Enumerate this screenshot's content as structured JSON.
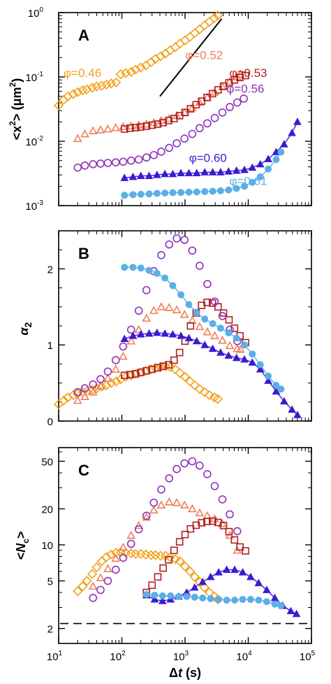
{
  "series": [
    {
      "phi": "0.46",
      "color": "#F2A11A",
      "marker": "diamond"
    },
    {
      "phi": "0.52",
      "color": "#EE7F58",
      "marker": "triangle"
    },
    {
      "phi": "0.53",
      "color": "#B01F23",
      "marker": "square"
    },
    {
      "phi": "0.56",
      "color": "#8E31B8",
      "marker": "circle"
    },
    {
      "phi": "0.60",
      "color": "#3A1BD1",
      "marker": "filled-triangle"
    },
    {
      "phi": "0.61",
      "color": "#5AAFE6",
      "marker": "filled-circle"
    }
  ],
  "chart_data": [
    {
      "type": "scatter",
      "panel": "A",
      "ylabel": "<x²> (μm²)",
      "xlabel": "",
      "xscale": "log",
      "yscale": "log",
      "xlim": [
        10,
        100000
      ],
      "ylim": [
        0.001,
        1
      ],
      "yticks": [
        "10⁻³",
        "10⁻²",
        "10⁻¹",
        "10⁰"
      ],
      "slope_line": [
        [
          400,
          0.05
        ],
        [
          3800,
          0.8
        ]
      ],
      "labels": [
        {
          "text": "φ=0.46",
          "series": 0,
          "at": [
            12,
            0.1
          ]
        },
        {
          "text": "φ=0.52",
          "series": 1,
          "at": [
            2000,
            0.19
          ]
        },
        {
          "text": "φ=0.53",
          "series": 2,
          "at": [
            10000,
            0.1
          ]
        },
        {
          "text": "φ=0.56",
          "series": 3,
          "at": [
            9000,
            0.057
          ]
        },
        {
          "text": "φ=0.60",
          "series": 4,
          "at": [
            2300,
            0.0048
          ]
        },
        {
          "text": "φ=0.61",
          "series": 5,
          "at": [
            10000,
            0.0021
          ]
        }
      ],
      "series": [
        {
          "x": [
            10,
            12,
            14,
            17,
            20,
            24,
            28,
            34,
            40,
            48,
            57,
            68,
            81,
            96,
            115,
            140,
            165,
            200,
            240,
            290,
            340,
            410,
            490,
            580,
            700,
            830,
            1000,
            1200,
            1420,
            1700,
            2030,
            2430,
            2900,
            3300
          ],
          "y": [
            0.036,
            0.044,
            0.05,
            0.054,
            0.058,
            0.062,
            0.064,
            0.068,
            0.071,
            0.073,
            0.076,
            0.079,
            0.082,
            0.11,
            0.115,
            0.12,
            0.13,
            0.14,
            0.15,
            0.17,
            0.19,
            0.21,
            0.23,
            0.26,
            0.29,
            0.33,
            0.37,
            0.42,
            0.48,
            0.55,
            0.63,
            0.72,
            0.82,
            0.9
          ]
        },
        {
          "x": [
            20,
            26,
            35,
            46,
            60,
            80,
            105,
            140,
            185,
            245,
            320,
            420,
            560,
            740,
            980,
            1300,
            1700,
            2250,
            2950,
            3900,
            5100,
            6700,
            7500
          ],
          "y": [
            0.011,
            0.013,
            0.0145,
            0.015,
            0.0155,
            0.0162,
            0.0168,
            0.0173,
            0.0178,
            0.0185,
            0.0195,
            0.021,
            0.0225,
            0.025,
            0.028,
            0.033,
            0.04,
            0.048,
            0.058,
            0.07,
            0.085,
            0.1,
            0.11
          ]
        },
        {
          "x": [
            110,
            135,
            165,
            200,
            245,
            300,
            370,
            450,
            550,
            670,
            820,
            1000,
            1220,
            1500,
            1830,
            2230,
            2720,
            3330,
            4060,
            4960,
            6060,
            7400,
            9040
          ],
          "y": [
            0.0155,
            0.016,
            0.0163,
            0.0167,
            0.0172,
            0.0178,
            0.0185,
            0.0195,
            0.021,
            0.0225,
            0.025,
            0.028,
            0.032,
            0.037,
            0.042,
            0.048,
            0.055,
            0.063,
            0.072,
            0.081,
            0.09,
            0.098,
            0.105
          ]
        },
        {
          "x": [
            20,
            26,
            35,
            46,
            60,
            80,
            105,
            140,
            185,
            245,
            320,
            420,
            560,
            740,
            980,
            1300,
            1700,
            2250,
            2950,
            3900,
            5100,
            6700,
            8500
          ],
          "y": [
            0.0039,
            0.0042,
            0.0044,
            0.0045,
            0.0046,
            0.0047,
            0.0048,
            0.005,
            0.0052,
            0.0056,
            0.0061,
            0.0069,
            0.0079,
            0.0093,
            0.011,
            0.013,
            0.016,
            0.019,
            0.023,
            0.028,
            0.034,
            0.04,
            0.046
          ]
        },
        {
          "x": [
            110,
            150,
            200,
            270,
            360,
            480,
            640,
            860,
            1150,
            1530,
            2050,
            2740,
            3650,
            4880,
            6520,
            8700,
            11600,
            15500,
            20700,
            27600,
            36900,
            49200,
            60000
          ],
          "y": [
            0.0027,
            0.0028,
            0.0029,
            0.0029,
            0.003,
            0.0031,
            0.0031,
            0.0032,
            0.0032,
            0.0032,
            0.0033,
            0.0033,
            0.0033,
            0.0034,
            0.0035,
            0.0036,
            0.0039,
            0.0044,
            0.0053,
            0.0068,
            0.009,
            0.0135,
            0.02
          ]
        },
        {
          "x": [
            110,
            150,
            200,
            270,
            360,
            480,
            640,
            860,
            1150,
            1530,
            2050,
            2740,
            3650,
            4880,
            6520,
            8700,
            11600,
            15500,
            20700,
            27600,
            33000
          ],
          "y": [
            0.00145,
            0.00148,
            0.0015,
            0.00152,
            0.00155,
            0.00157,
            0.00159,
            0.0016,
            0.00162,
            0.00163,
            0.00165,
            0.00167,
            0.0017,
            0.00175,
            0.00185,
            0.002,
            0.0023,
            0.0028,
            0.0037,
            0.0052,
            0.0068
          ]
        }
      ]
    },
    {
      "type": "scatter",
      "panel": "B",
      "ylabel": "α₂",
      "xlabel": "",
      "xscale": "log",
      "yscale": "linear",
      "xlim": [
        10,
        100000
      ],
      "ylim": [
        0,
        2.5
      ],
      "yticks": [
        0,
        1,
        2
      ],
      "series": [
        {
          "x": [
            10,
            12,
            14,
            17,
            20,
            24,
            28,
            34,
            40,
            48,
            57,
            68,
            81,
            96,
            115,
            140,
            165,
            200,
            240,
            290,
            340,
            410,
            490,
            580,
            700,
            830,
            1000,
            1200,
            1420,
            1700,
            2030,
            2430,
            2900,
            3300
          ],
          "y": [
            0.22,
            0.27,
            0.31,
            0.34,
            0.36,
            0.38,
            0.39,
            0.41,
            0.43,
            0.45,
            0.47,
            0.5,
            0.52,
            0.55,
            0.58,
            0.6,
            0.62,
            0.64,
            0.66,
            0.68,
            0.7,
            0.71,
            0.72,
            0.71,
            0.68,
            0.63,
            0.58,
            0.52,
            0.47,
            0.42,
            0.38,
            0.34,
            0.31,
            0.29
          ]
        },
        {
          "x": [
            20,
            26,
            35,
            46,
            60,
            80,
            105,
            140,
            185,
            245,
            320,
            420,
            560,
            740,
            980,
            1300,
            1700,
            2250,
            2950,
            3900,
            5100,
            6700,
            7500
          ],
          "y": [
            0.27,
            0.32,
            0.38,
            0.46,
            0.56,
            0.68,
            0.85,
            1.05,
            1.2,
            1.35,
            1.45,
            1.5,
            1.49,
            1.46,
            1.4,
            1.32,
            1.24,
            1.17,
            1.12,
            1.06,
            0.99,
            0.95,
            0.94
          ]
        },
        {
          "x": [
            110,
            135,
            165,
            200,
            245,
            300,
            370,
            450,
            550,
            670,
            820,
            1000,
            1220,
            1500,
            1830,
            2230,
            2720,
            3330,
            4060,
            4960,
            6060,
            7400,
            9040
          ],
          "y": [
            0.6,
            0.61,
            0.62,
            0.64,
            0.66,
            0.68,
            0.7,
            0.72,
            0.74,
            0.8,
            0.9,
            1.05,
            1.25,
            1.42,
            1.52,
            1.56,
            1.55,
            1.5,
            1.42,
            1.33,
            1.22,
            1.12,
            1.03
          ]
        },
        {
          "x": [
            20,
            26,
            35,
            46,
            60,
            80,
            105,
            140,
            185,
            245,
            320,
            420,
            560,
            740,
            980,
            1300,
            1700,
            2250,
            2950,
            3900,
            5100,
            6700
          ],
          "y": [
            0.38,
            0.43,
            0.48,
            0.55,
            0.65,
            0.8,
            0.98,
            1.2,
            1.45,
            1.72,
            1.97,
            2.18,
            2.32,
            2.4,
            2.38,
            2.24,
            2.04,
            1.8,
            1.57,
            1.38,
            1.2,
            1.05
          ]
        },
        {
          "x": [
            110,
            150,
            200,
            270,
            360,
            480,
            640,
            860,
            1150,
            1530,
            2050,
            2740,
            3650,
            4880,
            6520,
            8700,
            11600,
            15500,
            20700,
            27600,
            36900,
            49200,
            60000
          ],
          "y": [
            1.08,
            1.12,
            1.14,
            1.15,
            1.16,
            1.15,
            1.14,
            1.12,
            1.09,
            1.05,
            1.0,
            0.95,
            0.9,
            0.86,
            0.83,
            0.81,
            0.77,
            0.68,
            0.53,
            0.39,
            0.26,
            0.15,
            0.08
          ]
        },
        {
          "x": [
            110,
            150,
            200,
            270,
            360,
            480,
            640,
            860,
            1150,
            1530,
            2050,
            2740,
            3650,
            4880,
            6520,
            8700,
            11600,
            15500,
            20700,
            27600,
            33000
          ],
          "y": [
            2.02,
            2.02,
            2.01,
            1.98,
            1.94,
            1.88,
            1.78,
            1.66,
            1.53,
            1.42,
            1.34,
            1.28,
            1.22,
            1.16,
            1.09,
            1.0,
            0.88,
            0.74,
            0.59,
            0.47,
            0.42
          ]
        }
      ]
    },
    {
      "type": "scatter",
      "panel": "C",
      "ylabel": "<Nc>",
      "xlabel": "Δt (s)",
      "xscale": "log",
      "yscale": "log",
      "xlim": [
        10,
        100000
      ],
      "ylim": [
        1.5,
        65
      ],
      "yticks": [
        2,
        5,
        10,
        20,
        50
      ],
      "dashed_line_y": 2.2,
      "series": [
        {
          "x": [
            20,
            24,
            28,
            34,
            40,
            48,
            57,
            68,
            81,
            96,
            115,
            140,
            165,
            200,
            240,
            290,
            340,
            410,
            490,
            580,
            700,
            830,
            1000,
            1200,
            1420,
            1700,
            2030,
            2430,
            2900,
            3300
          ],
          "y": [
            4.1,
            4.5,
            5.0,
            5.7,
            6.5,
            7.3,
            7.9,
            8.3,
            8.6,
            8.7,
            8.6,
            8.5,
            8.4,
            8.4,
            8.3,
            8.2,
            8.2,
            8.1,
            8.1,
            7.9,
            7.6,
            7.3,
            6.6,
            6.0,
            5.4,
            4.9,
            4.4,
            4.0,
            3.7,
            3.5
          ]
        },
        {
          "x": [
            35,
            46,
            60,
            80,
            105,
            140,
            185,
            245,
            320,
            420,
            560,
            740,
            980,
            1300,
            1700,
            2250,
            2950,
            3900,
            5100,
            6700
          ],
          "y": [
            4.5,
            5.3,
            6.3,
            7.7,
            9.5,
            12,
            14.5,
            17,
            19.5,
            21.5,
            22.8,
            22.5,
            21.5,
            20,
            18.5,
            17.5,
            16.5,
            15,
            12,
            9
          ]
        },
        {
          "x": [
            245,
            300,
            370,
            450,
            550,
            670,
            820,
            1000,
            1220,
            1500,
            1830,
            2230,
            2720,
            3330,
            4060,
            4960,
            6060,
            7400,
            9040
          ],
          "y": [
            4.0,
            4.6,
            5.4,
            6.4,
            7.5,
            9.0,
            10.6,
            12.2,
            13.6,
            14.6,
            15.3,
            15.7,
            15.8,
            15.4,
            14.5,
            12.9,
            11.0,
            9.6,
            8.9
          ]
        },
        {
          "x": [
            35,
            46,
            60,
            80,
            105,
            140,
            185,
            245,
            320,
            420,
            560,
            740,
            980,
            1300,
            1700,
            2250,
            2950,
            3900,
            5100,
            6700
          ],
          "y": [
            3.6,
            4.2,
            5.0,
            6.2,
            7.8,
            10.2,
            13.5,
            17.5,
            22.5,
            29,
            36,
            43,
            48,
            50,
            46,
            39,
            31,
            24,
            18,
            13
          ]
        },
        {
          "x": [
            245,
            330,
            440,
            590,
            790,
            1060,
            1420,
            1900,
            2540,
            3400,
            4560,
            6100,
            8170,
            10900,
            14600,
            19600,
            26300,
            35200,
            47100,
            58000
          ],
          "y": [
            3.8,
            3.5,
            3.4,
            3.5,
            3.7,
            4.0,
            4.4,
            4.9,
            5.4,
            5.9,
            6.2,
            6.2,
            5.9,
            5.4,
            4.8,
            4.2,
            3.6,
            3.1,
            2.8,
            2.65
          ]
        },
        {
          "x": [
            245,
            330,
            440,
            590,
            790,
            1060,
            1420,
            1900,
            2540,
            3400,
            4560,
            6100,
            8170,
            10900,
            14600,
            19600,
            26300,
            33000
          ],
          "y": [
            3.85,
            3.8,
            3.75,
            3.75,
            3.7,
            3.7,
            3.65,
            3.6,
            3.55,
            3.5,
            3.45,
            3.45,
            3.5,
            3.5,
            3.45,
            3.35,
            3.2,
            3.1
          ]
        }
      ]
    }
  ]
}
